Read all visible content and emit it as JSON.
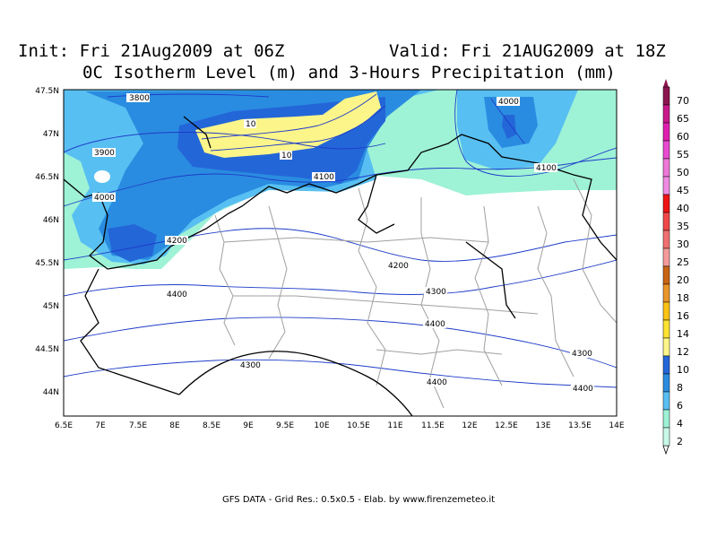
{
  "header": {
    "init": "Init: Fri 21Aug2009 at 06Z",
    "valid": "Valid: Fri 21AUG2009 at 18Z",
    "title": "0C Isotherm Level (m) and 3-Hours Precipitation (mm)"
  },
  "map": {
    "lon_ticks": [
      "6.5E",
      "7E",
      "7.5E",
      "8E",
      "8.5E",
      "9E",
      "9.5E",
      "10E",
      "10.5E",
      "11E",
      "11.5E",
      "12E",
      "12.5E",
      "13E",
      "13.5E",
      "14E"
    ],
    "lat_ticks": [
      "47.5N",
      "47N",
      "46.5N",
      "46N",
      "45.5N",
      "45N",
      "44.5N",
      "44N"
    ],
    "contour_labels": [
      "3800",
      "3900",
      "4000",
      "4000",
      "4100",
      "4100",
      "4200",
      "4200",
      "4300",
      "4300",
      "4300",
      "4400",
      "4400",
      "4400",
      "4400",
      "10",
      "10"
    ],
    "colorbar": {
      "levels": [
        "70",
        "65",
        "60",
        "55",
        "50",
        "45",
        "40",
        "35",
        "30",
        "25",
        "20",
        "18",
        "16",
        "14",
        "12",
        "10",
        "8",
        "6",
        "4",
        "2"
      ],
      "colors": [
        "#8b1550",
        "#c81a8a",
        "#e020b0",
        "#e84ad0",
        "#ee78d8",
        "#f08ae2",
        "#ef1414",
        "#f04848",
        "#f07070",
        "#f49a9a",
        "#c86414",
        "#e8962a",
        "#fbc315",
        "#fce332",
        "#fcf58a",
        "#2366d8",
        "#2a8ce0",
        "#58bff2",
        "#9ef2d6",
        "#c8f8e8"
      ]
    },
    "colors": {
      "land": "#ffffff",
      "precip_2": "#9ef2d6",
      "precip_4": "#58bff2",
      "precip_6": "#2a8ce0",
      "precip_8": "#2366d8",
      "precip_12": "#fcf58a",
      "contour": "#1e3cc8",
      "border": "#000000",
      "region": "#a0a0a0"
    }
  },
  "footer": "GFS DATA - Grid Res.: 0.5x0.5 - Elab. by www.firenzemeteo.it"
}
